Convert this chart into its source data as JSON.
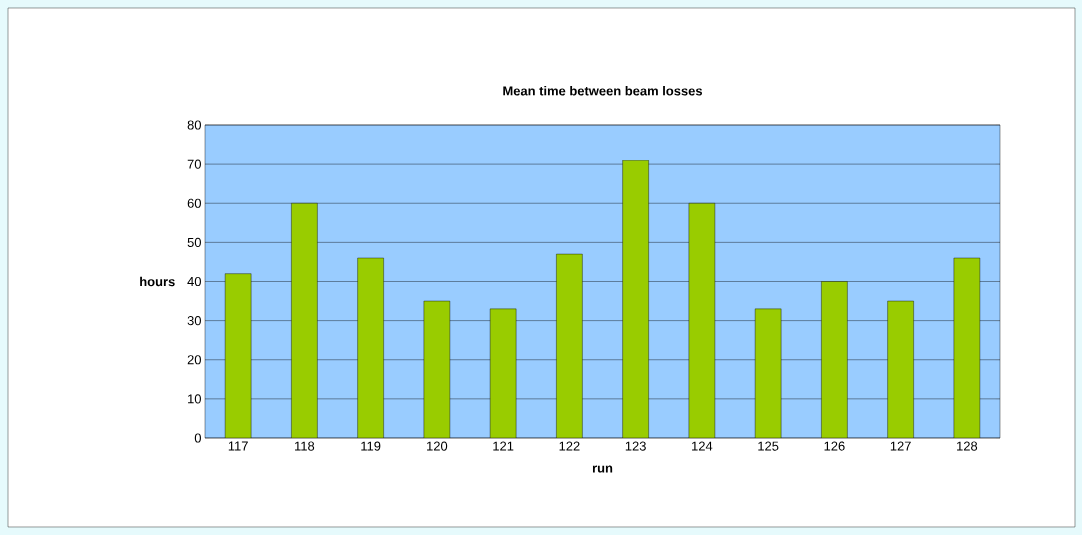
{
  "chart_data": {
    "type": "bar",
    "title": "Mean time between beam losses",
    "xlabel": "run",
    "ylabel": "hours",
    "categories": [
      "117",
      "118",
      "119",
      "120",
      "121",
      "122",
      "123",
      "124",
      "125",
      "126",
      "127",
      "128"
    ],
    "values": [
      42,
      60,
      46,
      35,
      33,
      47,
      71,
      60,
      33,
      40,
      35,
      46
    ],
    "color": "#99cc00",
    "ylim": [
      0,
      80
    ],
    "yticks": [
      0,
      10,
      20,
      30,
      40,
      50,
      60,
      70,
      80
    ],
    "grid": "y"
  }
}
